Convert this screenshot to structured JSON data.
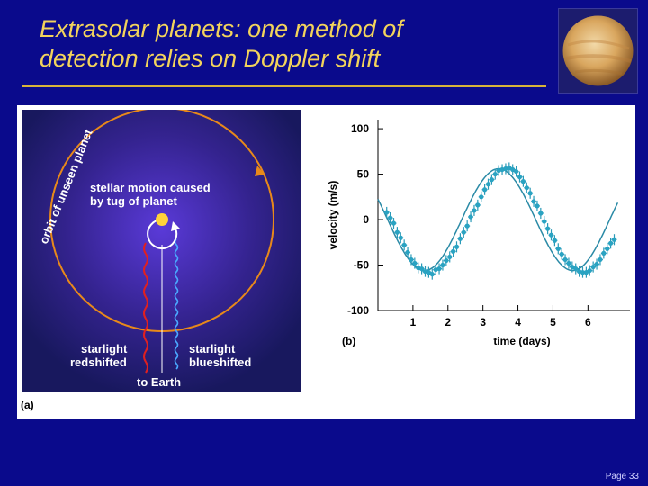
{
  "slide": {
    "title_line1": "Extrasolar planets: one method of",
    "title_line2": "detection relies on Doppler shift",
    "page_label": "Page 33"
  },
  "panel_a": {
    "letter": "(a)",
    "orbit_label": "orbit of unseen planet",
    "motion_label_1": "stellar motion caused",
    "motion_label_2": "by tug of planet",
    "red_label_1": "starlight",
    "red_label_2": "redshifted",
    "blue_label_1": "starlight",
    "blue_label_2": "blueshifted",
    "earth_label": "to Earth"
  },
  "chart_data": {
    "type": "scatter",
    "panel_letter": "(b)",
    "xlabel": "time (days)",
    "ylabel": "velocity (m/s)",
    "xlim": [
      0,
      7.2
    ],
    "ylim": [
      -100,
      110
    ],
    "xticks": [
      1,
      2,
      3,
      4,
      5,
      6
    ],
    "yticks": [
      100,
      50,
      0,
      -50,
      -100
    ],
    "grid": false,
    "fit_curve": {
      "period_days": 4.23,
      "amplitude": 56,
      "offset": 0,
      "peak_time": 3.45
    },
    "series": [
      {
        "x": [
          0.25,
          0.35,
          0.45,
          0.55,
          0.65,
          0.75,
          0.85,
          0.95,
          1.05,
          1.15,
          1.25,
          1.35,
          1.45,
          1.55,
          1.65,
          1.75,
          1.85,
          1.95,
          2.05,
          2.15,
          2.25,
          2.35,
          2.45,
          2.55,
          2.65,
          2.75,
          2.85,
          2.95,
          3.05,
          3.15,
          3.25,
          3.35,
          3.45,
          3.55,
          3.65,
          3.75,
          3.85,
          3.95,
          4.05,
          4.15,
          4.25,
          4.35,
          4.45,
          4.55,
          4.65,
          4.75,
          4.85,
          4.95,
          5.05,
          5.15,
          5.25,
          5.35,
          5.45,
          5.55,
          5.65,
          5.75,
          5.85,
          5.95,
          6.05,
          6.15,
          6.25,
          6.35,
          6.45,
          6.55,
          6.65,
          6.75
        ],
        "y": [
          8,
          2,
          -4,
          -14,
          -20,
          -28,
          -36,
          -44,
          -48,
          -53,
          -54,
          -57,
          -58,
          -60,
          -55,
          -54,
          -50,
          -45,
          -41,
          -35,
          -30,
          -21,
          -14,
          -7,
          3,
          10,
          16,
          25,
          33,
          39,
          44,
          50,
          54,
          55,
          56,
          57,
          55,
          53,
          47,
          42,
          35,
          29,
          20,
          15,
          7,
          -2,
          -10,
          -17,
          -23,
          -32,
          -38,
          -44,
          -48,
          -52,
          -54,
          -57,
          -58,
          -58,
          -56,
          -52,
          -49,
          -44,
          -37,
          -32,
          -26,
          -22
        ],
        "error": 6
      }
    ]
  }
}
